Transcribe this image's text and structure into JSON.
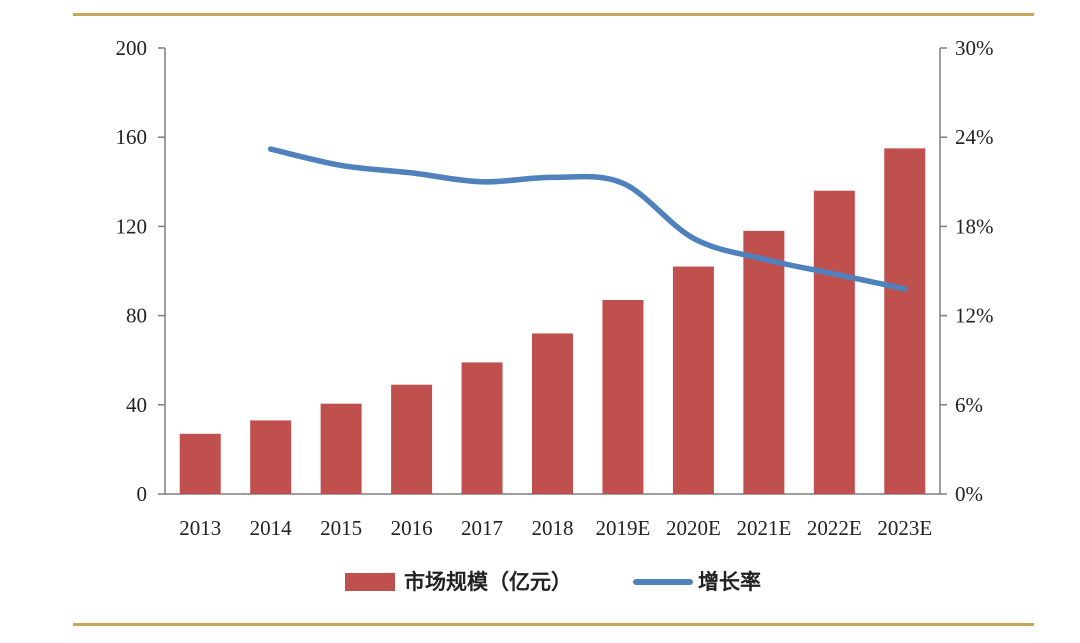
{
  "chart_data": {
    "type": "bar",
    "title": "",
    "xlabel": "",
    "ylabel": "",
    "categories": [
      "2013",
      "2014",
      "2015",
      "2016",
      "2017",
      "2018",
      "2019E",
      "2020E",
      "2021E",
      "2022E",
      "2023E"
    ],
    "series": [
      {
        "name": "市场规模（亿元）",
        "type": "bar",
        "axis": "left",
        "color": "#c0504d",
        "values": [
          27,
          33,
          40.5,
          49,
          59,
          72,
          87,
          102,
          118,
          136,
          155
        ]
      },
      {
        "name": "增长率",
        "type": "line",
        "axis": "right",
        "color": "#4f81bd",
        "values": [
          null,
          23.2,
          22.1,
          21.6,
          21.0,
          21.3,
          20.9,
          17.2,
          15.8,
          14.8,
          13.8
        ]
      }
    ],
    "ylim_left": [
      0,
      200
    ],
    "yticks_left": [
      "0",
      "40",
      "80",
      "120",
      "160",
      "200"
    ],
    "ylim_right": [
      0,
      30
    ],
    "yticks_right": [
      "0%",
      "6%",
      "12%",
      "18%",
      "24%",
      "30%"
    ],
    "grid": false,
    "legend_position": "bottom"
  }
}
